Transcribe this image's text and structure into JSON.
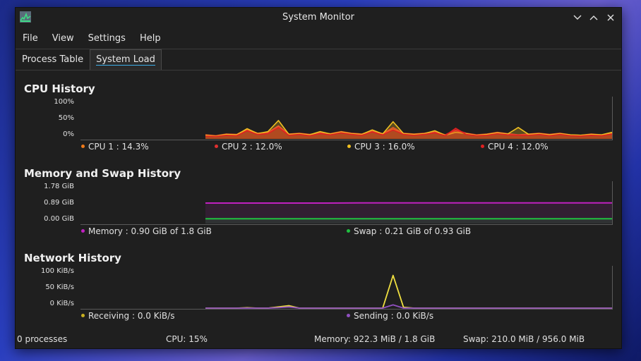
{
  "window": {
    "title": "System Monitor"
  },
  "menu": [
    "File",
    "View",
    "Settings",
    "Help"
  ],
  "tabs": [
    {
      "label": "Process Table",
      "active": false
    },
    {
      "label": "System Load",
      "active": true
    }
  ],
  "cpu": {
    "title": "CPU History",
    "yticks": [
      "100%",
      "50%",
      "0%"
    ],
    "legend": [
      {
        "text": "CPU 1 : 14.3%",
        "color": "#f07a1a"
      },
      {
        "text": "CPU 2 : 12.0%",
        "color": "#e03030"
      },
      {
        "text": "CPU 3 : 16.0%",
        "color": "#f0c020"
      },
      {
        "text": "CPU 4 : 12.0%",
        "color": "#e02020"
      }
    ]
  },
  "memory": {
    "title": "Memory and Swap History",
    "yticks": [
      "1.78 GiB",
      "0.89 GiB",
      "0.00 GiB"
    ],
    "legend": [
      {
        "text": "Memory : 0.90 GiB of 1.8 GiB",
        "color": "#c020c0"
      },
      {
        "text": "Swap : 0.21 GiB of 0.93 GiB",
        "color": "#20c040"
      }
    ]
  },
  "network": {
    "title": "Network History",
    "yticks": [
      "100 KiB/s",
      "50 KiB/s",
      "0 KiB/s"
    ],
    "legend": [
      {
        "text": "Receiving : 0.0 KiB/s",
        "color": "#c8b020"
      },
      {
        "text": "Sending : 0.0 KiB/s",
        "color": "#9050c0"
      }
    ]
  },
  "status": {
    "processes": "0 processes",
    "cpu": "CPU: 15%",
    "memory": "Memory: 922.3 MiB / 1.8 GiB",
    "swap": "Swap: 210.0 MiB / 956.0 MiB"
  },
  "chart_data": [
    {
      "type": "area",
      "title": "CPU History",
      "ylabel": "",
      "ylim": [
        0,
        100
      ],
      "yticks": [
        "0%",
        "50%",
        "100%"
      ],
      "grid": false,
      "legend_position": "bottom",
      "x": [
        0,
        1,
        2,
        3,
        4,
        5,
        6,
        7,
        8,
        9,
        10,
        11,
        12,
        13,
        14,
        15,
        16,
        17,
        18,
        19,
        20,
        21,
        22,
        23,
        24,
        25,
        26,
        27,
        28,
        29,
        30,
        31,
        32,
        33,
        34,
        35,
        36,
        37,
        38,
        39
      ],
      "series": [
        {
          "name": "CPU 1",
          "color": "#f07a1a",
          "values": [
            8,
            6,
            10,
            9,
            22,
            12,
            14,
            30,
            10,
            12,
            9,
            14,
            11,
            16,
            12,
            10,
            18,
            11,
            24,
            12,
            10,
            12,
            16,
            9,
            20,
            12,
            9,
            10,
            14,
            11,
            9,
            10,
            12,
            9,
            12,
            9,
            8,
            10,
            9,
            14
          ]
        },
        {
          "name": "CPU 2",
          "color": "#e03030",
          "values": [
            10,
            8,
            12,
            11,
            24,
            14,
            16,
            32,
            12,
            14,
            11,
            15,
            13,
            18,
            14,
            12,
            20,
            13,
            28,
            14,
            12,
            14,
            18,
            10,
            22,
            14,
            10,
            12,
            16,
            13,
            10,
            12,
            14,
            11,
            14,
            10,
            9,
            12,
            10,
            12
          ]
        },
        {
          "name": "CPU 3",
          "color": "#f0c020",
          "values": [
            9,
            7,
            11,
            10,
            25,
            13,
            18,
            45,
            11,
            13,
            10,
            18,
            12,
            17,
            13,
            11,
            22,
            12,
            42,
            13,
            11,
            13,
            20,
            9,
            16,
            13,
            9,
            11,
            15,
            12,
            28,
            11,
            13,
            10,
            13,
            10,
            9,
            11,
            10,
            16
          ]
        },
        {
          "name": "CPU 4",
          "color": "#e02020",
          "values": [
            7,
            6,
            9,
            8,
            20,
            11,
            13,
            28,
            9,
            11,
            8,
            13,
            10,
            15,
            11,
            9,
            17,
            10,
            22,
            11,
            9,
            11,
            15,
            8,
            26,
            11,
            8,
            9,
            13,
            10,
            9,
            9,
            11,
            8,
            11,
            8,
            7,
            9,
            8,
            12
          ]
        }
      ]
    },
    {
      "type": "line",
      "title": "Memory and Swap History",
      "ylabel": "",
      "ylim": [
        0,
        1.78
      ],
      "yticks": [
        "0.00 GiB",
        "0.89 GiB",
        "1.78 GiB"
      ],
      "grid": false,
      "legend_position": "bottom",
      "x": [
        0,
        1,
        2,
        3,
        4,
        5,
        6,
        7,
        8,
        9,
        10
      ],
      "series": [
        {
          "name": "Memory",
          "color": "#c020c0",
          "values": [
            0.89,
            0.89,
            0.89,
            0.89,
            0.9,
            0.9,
            0.9,
            0.9,
            0.9,
            0.9,
            0.9
          ]
        },
        {
          "name": "Swap",
          "color": "#20c040",
          "values": [
            0.21,
            0.21,
            0.21,
            0.21,
            0.21,
            0.21,
            0.21,
            0.21,
            0.21,
            0.21,
            0.21
          ]
        }
      ]
    },
    {
      "type": "line",
      "title": "Network History",
      "ylabel": "",
      "ylim": [
        0,
        100
      ],
      "yticks": [
        "0 KiB/s",
        "50 KiB/s",
        "100 KiB/s"
      ],
      "grid": false,
      "legend_position": "bottom",
      "x": [
        0,
        1,
        2,
        3,
        4,
        5,
        6,
        7,
        8,
        9,
        10,
        11,
        12,
        13,
        14,
        15,
        16,
        17,
        18,
        19,
        20,
        21,
        22,
        23,
        24,
        25,
        26,
        27,
        28,
        29,
        30,
        31,
        32,
        33,
        34,
        35,
        36,
        37,
        38,
        39
      ],
      "series": [
        {
          "name": "Receiving",
          "color": "#f0e040",
          "values": [
            0,
            0,
            0,
            0,
            1,
            0,
            0,
            3,
            6,
            0,
            0,
            0,
            0,
            0,
            0,
            0,
            0,
            0,
            80,
            2,
            0,
            0,
            0,
            0,
            0,
            0,
            0,
            0,
            0,
            0,
            0,
            0,
            0,
            0,
            0,
            0,
            0,
            0,
            0,
            0
          ]
        },
        {
          "name": "Sending",
          "color": "#9050c0",
          "values": [
            0,
            0,
            0,
            0,
            0,
            0,
            0,
            1,
            3,
            0,
            0,
            0,
            0,
            0,
            0,
            0,
            0,
            0,
            8,
            0,
            0,
            0,
            0,
            0,
            0,
            0,
            0,
            0,
            0,
            0,
            0,
            0,
            0,
            0,
            0,
            0,
            0,
            0,
            0,
            0
          ]
        }
      ]
    }
  ]
}
